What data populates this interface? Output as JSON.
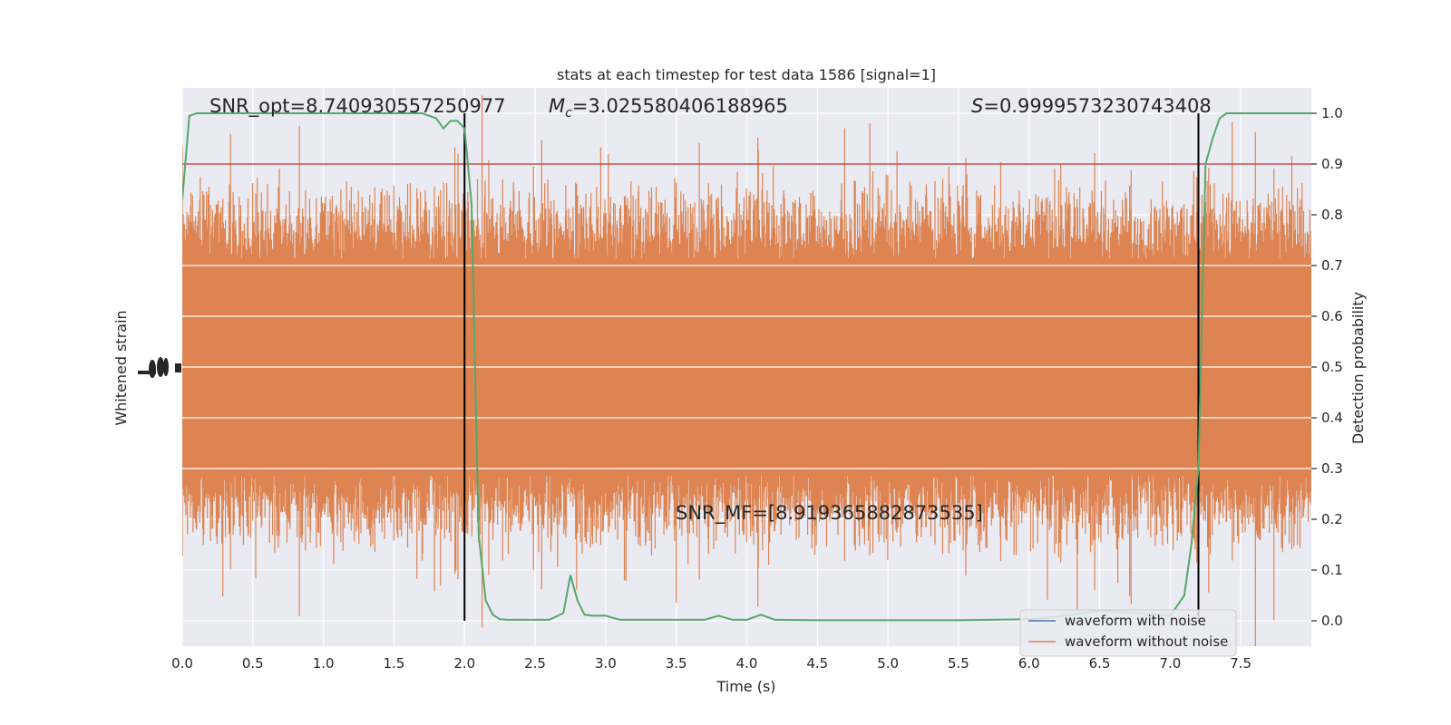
{
  "chart_data": {
    "type": "line",
    "title": "stats at each timestep for test data 1586 [signal=1]",
    "xlabel": "Time (s)",
    "ylabel_left": "Whitened strain",
    "ylabel_right": "Detection probability",
    "xlim": [
      0,
      8
    ],
    "ylim_right": [
      -0.05,
      1.05
    ],
    "x_ticks": [
      "0.0",
      "0.5",
      "1.0",
      "1.5",
      "2.0",
      "2.5",
      "3.0",
      "3.5",
      "4.0",
      "4.5",
      "5.0",
      "5.5",
      "6.0",
      "6.5",
      "7.0",
      "7.5"
    ],
    "y_right_ticks": [
      "0.0",
      "0.1",
      "0.2",
      "0.3",
      "0.4",
      "0.5",
      "0.6",
      "0.7",
      "0.8",
      "0.9",
      "1.0"
    ],
    "grid": true,
    "legend_position": "lower-right",
    "annotations": {
      "snr_opt": "SNR_opt=8.740930557250977",
      "mc_symbol": "M",
      "mc_sub": "c",
      "mc_value": "=3.025580406188965",
      "s_symbol": "S",
      "s_value": "=0.9999573230743408",
      "snr_mf": "SNR_MF=[8.919365882873535]"
    },
    "threshold": 0.9,
    "vertical_markers": [
      2.0,
      7.2
    ],
    "series": [
      {
        "name": "waveform with noise",
        "color": "#4c72b0"
      },
      {
        "name": "waveform without noise",
        "color": "#dd8452"
      },
      {
        "color": "#55a868",
        "x": [
          0.0,
          0.05,
          0.1,
          0.5,
          1.0,
          1.5,
          1.7,
          1.8,
          1.85,
          1.9,
          1.95,
          2.0,
          2.05,
          2.1,
          2.15,
          2.2,
          2.25,
          2.3,
          2.4,
          2.5,
          2.6,
          2.7,
          2.75,
          2.8,
          2.85,
          2.9,
          3.0,
          3.1,
          3.2,
          3.5,
          3.7,
          3.8,
          3.9,
          4.0,
          4.1,
          4.2,
          4.5,
          5.0,
          5.5,
          6.0,
          6.2,
          6.5,
          7.0,
          7.1,
          7.15,
          7.2,
          7.25,
          7.3,
          7.35,
          7.4,
          7.5,
          8.0
        ],
        "values": [
          0.83,
          0.995,
          1.0,
          1.0,
          1.0,
          1.0,
          1.0,
          0.99,
          0.97,
          0.985,
          0.985,
          0.97,
          0.82,
          0.17,
          0.04,
          0.012,
          0.003,
          0.002,
          0.002,
          0.002,
          0.002,
          0.015,
          0.09,
          0.04,
          0.012,
          0.01,
          0.01,
          0.002,
          0.002,
          0.002,
          0.002,
          0.01,
          0.002,
          0.002,
          0.012,
          0.002,
          0.001,
          0.001,
          0.001,
          0.003,
          0.008,
          0.02,
          0.01,
          0.05,
          0.15,
          0.3,
          0.9,
          0.95,
          0.99,
          1.0,
          1.0,
          1.0
        ]
      }
    ]
  }
}
